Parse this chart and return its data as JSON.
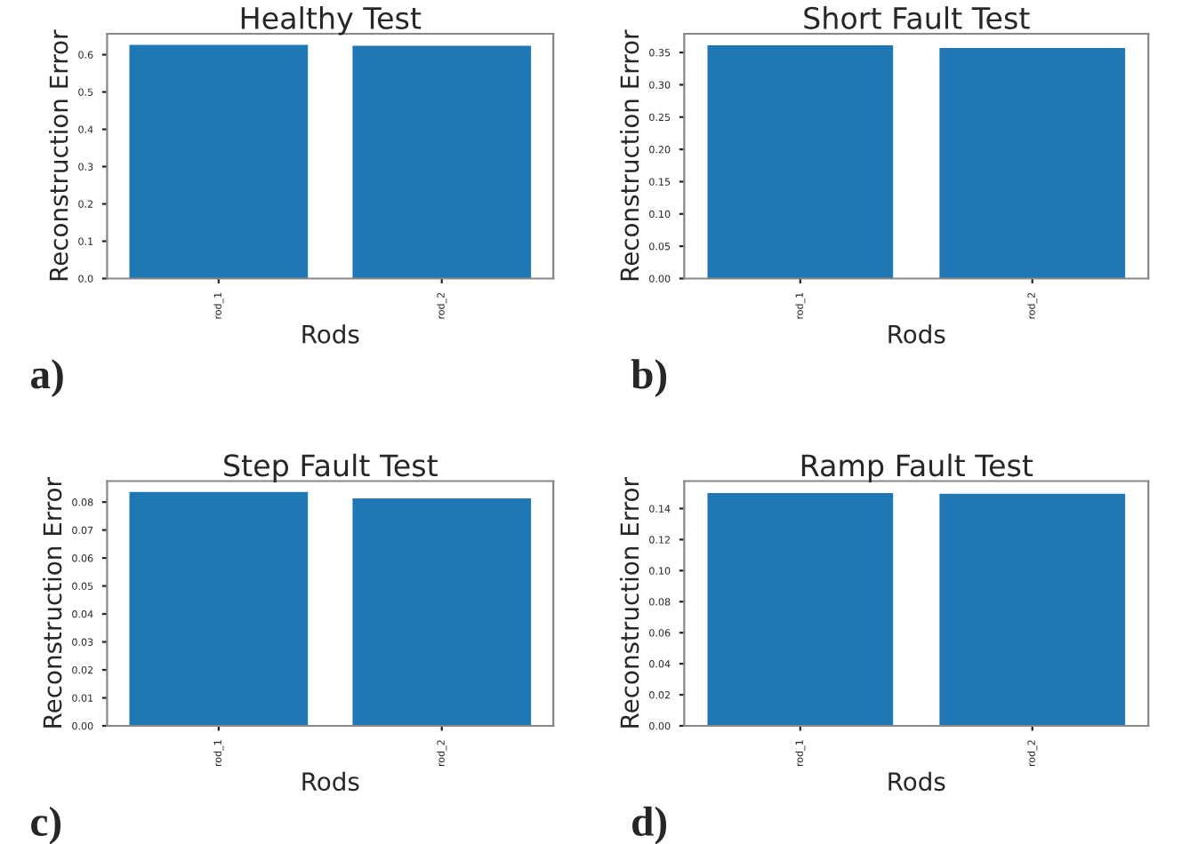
{
  "chart_data": [
    {
      "type": "bar",
      "title": "Healthy Test",
      "xlabel": "Rods",
      "ylabel": "Reconstruction Error",
      "categories": [
        "rod_1",
        "rod_2"
      ],
      "values": [
        0.626,
        0.624
      ],
      "color": "#1f77b4",
      "ylim": [
        0,
        0.656
      ],
      "yticks": [
        {
          "value": 0,
          "label": "0.0"
        },
        {
          "value": 0.1,
          "label": "0.1"
        },
        {
          "value": 0.2,
          "label": "0.2"
        },
        {
          "value": 0.3,
          "label": "0.3"
        },
        {
          "value": 0.4,
          "label": "0.4"
        },
        {
          "value": 0.5,
          "label": "0.5"
        },
        {
          "value": 0.6,
          "label": "0.6"
        }
      ],
      "annotations": [
        "a)"
      ]
    },
    {
      "type": "bar",
      "title": "Short Fault Test",
      "xlabel": "Rods",
      "ylabel": "Reconstruction Error",
      "categories": [
        "rod_1",
        "rod_2"
      ],
      "values": [
        0.361,
        0.357
      ],
      "color": "#1f77b4",
      "ylim": [
        0,
        0.379
      ],
      "yticks": [
        {
          "value": 0,
          "label": "0.00"
        },
        {
          "value": 0.05,
          "label": "0.05"
        },
        {
          "value": 0.1,
          "label": "0.10"
        },
        {
          "value": 0.15,
          "label": "0.15"
        },
        {
          "value": 0.2,
          "label": "0.20"
        },
        {
          "value": 0.25,
          "label": "0.25"
        },
        {
          "value": 0.3,
          "label": "0.30"
        },
        {
          "value": 0.35,
          "label": "0.35"
        }
      ],
      "annotations": [
        "b)"
      ]
    },
    {
      "type": "bar",
      "title": "Step Fault Test",
      "xlabel": "Rods",
      "ylabel": "Reconstruction Error",
      "categories": [
        "rod_1",
        "rod_2"
      ],
      "values": [
        0.0836,
        0.0813
      ],
      "color": "#1f77b4",
      "ylim": [
        0,
        0.0875
      ],
      "yticks": [
        {
          "value": 0,
          "label": "0.00"
        },
        {
          "value": 0.01,
          "label": "0.01"
        },
        {
          "value": 0.02,
          "label": "0.02"
        },
        {
          "value": 0.03,
          "label": "0.03"
        },
        {
          "value": 0.04,
          "label": "0.04"
        },
        {
          "value": 0.05,
          "label": "0.05"
        },
        {
          "value": 0.06,
          "label": "0.06"
        },
        {
          "value": 0.07,
          "label": "0.07"
        },
        {
          "value": 0.08,
          "label": "0.08"
        }
      ],
      "annotations": [
        "c)"
      ]
    },
    {
      "type": "bar",
      "title": "Ramp Fault Test",
      "xlabel": "Rods",
      "ylabel": "Reconstruction Error",
      "categories": [
        "rod_1",
        "rod_2"
      ],
      "values": [
        0.15,
        0.1496
      ],
      "color": "#1f77b4",
      "ylim": [
        0,
        0.1577
      ],
      "yticks": [
        {
          "value": 0,
          "label": "0.00"
        },
        {
          "value": 0.02,
          "label": "0.02"
        },
        {
          "value": 0.04,
          "label": "0.04"
        },
        {
          "value": 0.06,
          "label": "0.06"
        },
        {
          "value": 0.08,
          "label": "0.08"
        },
        {
          "value": 0.1,
          "label": "0.10"
        },
        {
          "value": 0.12,
          "label": "0.12"
        },
        {
          "value": 0.14,
          "label": "0.14"
        }
      ],
      "annotations": [
        "d)"
      ]
    }
  ]
}
